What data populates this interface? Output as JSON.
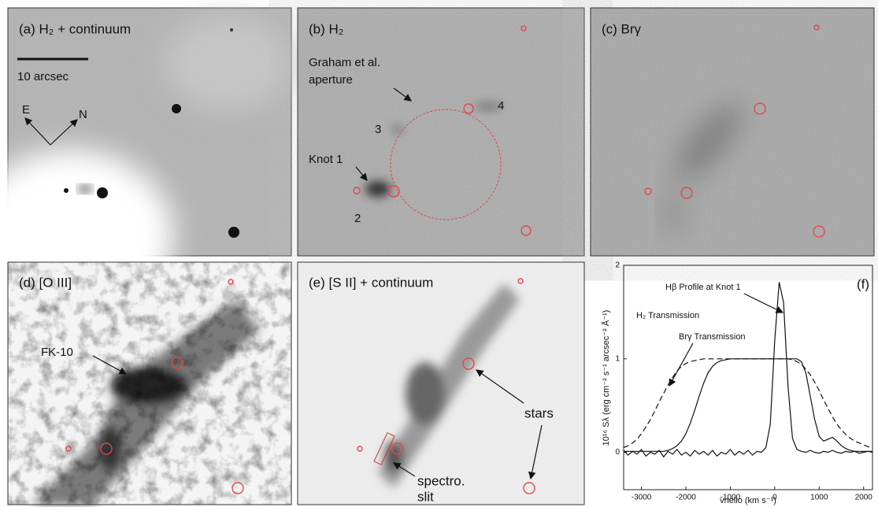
{
  "panels": [
    {
      "label": "(a) H₂ + continuum",
      "annotations": [
        "10 arcsec",
        "E",
        "N"
      ]
    },
    {
      "label": "(b) H₂",
      "annotations": [
        "Graham et al.",
        "aperture",
        "3",
        "4",
        "Knot 1",
        "2"
      ]
    },
    {
      "label": "(c) Brγ",
      "annotations": []
    },
    {
      "label": "(d) [O III]",
      "annotations": [
        "FK-10"
      ]
    },
    {
      "label": "(e) [S II] + continuum",
      "annotations": [
        "stars",
        "spectro.",
        "slit"
      ]
    }
  ],
  "chart_data": {
    "type": "line",
    "title": "(f)",
    "xlabel": "vhelio (km s⁻¹)",
    "ylabel": "10¹⁶ Sλ (erg cm⁻² s⁻¹ arcsec⁻² Å⁻¹)",
    "annotations": [
      "Hβ Profile at Knot 1",
      "H₂ Transmission",
      "Brγ Transmission"
    ],
    "xlim": [
      -3400,
      2200
    ],
    "ylim": [
      -0.4,
      2
    ],
    "xticks": [
      -3000,
      -2000,
      -1000,
      0,
      1000,
      2000
    ],
    "yticks": [
      0,
      1,
      2
    ],
    "x": [
      -3400,
      -3300,
      -3200,
      -3100,
      -3000,
      -2900,
      -2800,
      -2700,
      -2600,
      -2500,
      -2400,
      -2300,
      -2200,
      -2100,
      -2000,
      -1900,
      -1800,
      -1700,
      -1600,
      -1500,
      -1400,
      -1300,
      -1200,
      -1100,
      -1000,
      -900,
      -800,
      -700,
      -600,
      -500,
      -400,
      -300,
      -200,
      -100,
      0,
      100,
      200,
      300,
      400,
      500,
      600,
      700,
      800,
      900,
      1000,
      1100,
      1200,
      1300,
      1400,
      1500,
      1600,
      1700,
      1800,
      1900,
      2000,
      2100,
      2200
    ],
    "series": [
      {
        "name": "H₂ Transmission",
        "color": "#111111",
        "dash": true,
        "values": [
          0.05,
          0.07,
          0.1,
          0.14,
          0.2,
          0.27,
          0.35,
          0.44,
          0.54,
          0.63,
          0.72,
          0.8,
          0.87,
          0.92,
          0.95,
          0.97,
          0.98,
          0.99,
          1,
          1,
          1,
          1,
          1,
          1,
          1,
          1,
          1,
          1,
          1,
          1,
          1,
          1,
          1,
          1,
          1,
          1,
          1,
          1,
          0.99,
          0.97,
          0.94,
          0.89,
          0.83,
          0.75,
          0.66,
          0.56,
          0.47,
          0.38,
          0.3,
          0.24,
          0.19,
          0.15,
          0.12,
          0.1,
          0.08,
          0.06,
          0.05
        ]
      },
      {
        "name": "Brγ Transmission",
        "color": "#111111",
        "dash": false,
        "values": [
          0.01,
          0.01,
          0.01,
          0.01,
          0.01,
          0.01,
          0.01,
          0.01,
          0.01,
          0.01,
          0.02,
          0.04,
          0.07,
          0.12,
          0.2,
          0.31,
          0.45,
          0.6,
          0.74,
          0.85,
          0.92,
          0.96,
          0.98,
          0.99,
          1,
          1,
          1,
          1,
          1,
          1,
          1,
          1,
          1,
          1,
          1,
          1,
          1,
          1,
          1,
          1,
          0.97,
          0.85,
          0.6,
          0.35,
          0.17,
          0.12,
          0.14,
          0.16,
          0.12,
          0.07,
          0.04,
          0.02,
          0.01,
          0.01,
          0.01,
          0.01,
          0.01
        ]
      },
      {
        "name": "Hβ Profile at Knot 1",
        "color": "#111111",
        "dash": false,
        "values": [
          0.02,
          -0.03,
          0.01,
          -0.02,
          0.03,
          -0.04,
          0.0,
          -0.02,
          0.02,
          -0.05,
          0.01,
          -0.02,
          0.03,
          -0.03,
          0.0,
          -0.04,
          0.02,
          -0.02,
          0.01,
          -0.03,
          0.02,
          -0.04,
          0.0,
          -0.02,
          0.03,
          -0.03,
          0.01,
          -0.02,
          0.02,
          -0.03,
          0.01,
          0.0,
          0.05,
          0.3,
          1.2,
          1.82,
          1.6,
          0.7,
          0.15,
          0.03,
          0.01,
          0.0,
          0.02,
          0.0,
          -0.01,
          0.01,
          0.0,
          0.02,
          0.0,
          -0.01,
          0.01,
          0.0,
          0.01,
          -0.01,
          0.0,
          0.01,
          0.0
        ]
      }
    ]
  }
}
